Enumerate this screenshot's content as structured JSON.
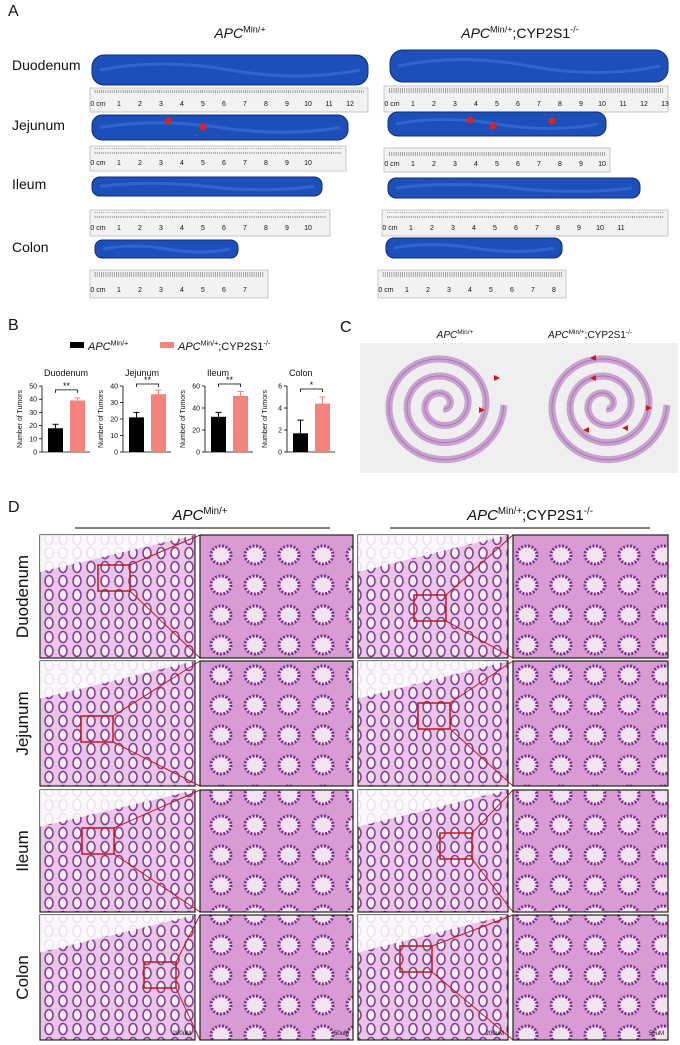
{
  "genotypes": [
    {
      "italic": "APC",
      "sup": "Min/+"
    },
    {
      "italic": "APC",
      "sup": "Min/+",
      "text": ";CYP2S1",
      "sup2": "-/-"
    }
  ],
  "panel_a": {
    "label": "A",
    "rows": [
      {
        "name": "Duodenum",
        "rulers": [
          [
            "0 cm",
            "1",
            "2",
            "3",
            "4",
            "5",
            "6",
            "7",
            "8",
            "9",
            "10",
            "11",
            "12"
          ],
          [
            "0 cm",
            "1",
            "2",
            "3",
            "4",
            "5",
            "6",
            "7",
            "8",
            "9",
            "10",
            "11",
            "12",
            "13"
          ]
        ]
      },
      {
        "name": "Jejunum",
        "rulers": [
          [
            "0 cm",
            "1",
            "2",
            "3",
            "4",
            "5",
            "6",
            "7",
            "8",
            "9",
            "10"
          ],
          [
            "0 cm",
            "1",
            "2",
            "3",
            "4",
            "5",
            "6",
            "7",
            "8",
            "9",
            "10"
          ]
        ]
      },
      {
        "name": "Ileum",
        "rulers": [
          [
            "0 cm",
            "1",
            "2",
            "3",
            "4",
            "5",
            "6",
            "7",
            "8",
            "9",
            "10"
          ],
          [
            "0 cm",
            "1",
            "2",
            "3",
            "4",
            "5",
            "6",
            "7",
            "8",
            "9",
            "10",
            "11"
          ]
        ]
      },
      {
        "name": "Colon",
        "rulers": [
          [
            "0 cm",
            "1",
            "2",
            "3",
            "4",
            "5",
            "6",
            "7"
          ],
          [
            "0 cm",
            "1",
            "2",
            "3",
            "4",
            "5",
            "6",
            "7",
            "8"
          ]
        ]
      }
    ]
  },
  "panel_b": {
    "label": "B",
    "legend_colors": [
      "#000000",
      "#f4837d"
    ]
  },
  "chart_data": [
    {
      "type": "bar",
      "title": "Duodenum",
      "y_label": "Number of Tumors",
      "categories": [
        null,
        null
      ],
      "values": [
        18,
        39
      ],
      "errors": [
        3,
        2
      ],
      "colors": [
        "#000000",
        "#f4837d"
      ],
      "ylim": [
        0,
        50
      ],
      "yticks": [
        0,
        10,
        20,
        30,
        40,
        50
      ],
      "significance": "**"
    },
    {
      "type": "bar",
      "title": "Jejunum",
      "y_label": "Number of Tumors",
      "categories": [
        null,
        null
      ],
      "values": [
        21,
        35
      ],
      "errors": [
        3,
        2.5
      ],
      "colors": [
        "#000000",
        "#f4837d"
      ],
      "ylim": [
        0,
        40
      ],
      "yticks": [
        0,
        10,
        20,
        30,
        40
      ],
      "significance": "**"
    },
    {
      "type": "bar",
      "title": "Ileum",
      "y_label": "Number of Tumors",
      "categories": [
        null,
        null
      ],
      "values": [
        32,
        51
      ],
      "errors": [
        4,
        4
      ],
      "colors": [
        "#000000",
        "#f4837d"
      ],
      "ylim": [
        0,
        60
      ],
      "yticks": [
        0,
        20,
        40,
        60
      ],
      "significance": "**"
    },
    {
      "type": "bar",
      "title": "Colon",
      "y_label": "Number of Tumors",
      "categories": [
        null,
        null
      ],
      "values": [
        1.7,
        4.4
      ],
      "errors": [
        1.2,
        0.6
      ],
      "colors": [
        "#000000",
        "#f4837d"
      ],
      "ylim": [
        0,
        6
      ],
      "yticks": [
        0,
        2,
        4,
        6
      ],
      "significance": "*"
    }
  ],
  "panel_c": {
    "label": "C"
  },
  "panel_d": {
    "label": "D",
    "rows": [
      "Duodenum",
      "Jejunum",
      "Ileum",
      "Colon"
    ],
    "scale_bars": [
      "200uM",
      "50uM"
    ]
  }
}
